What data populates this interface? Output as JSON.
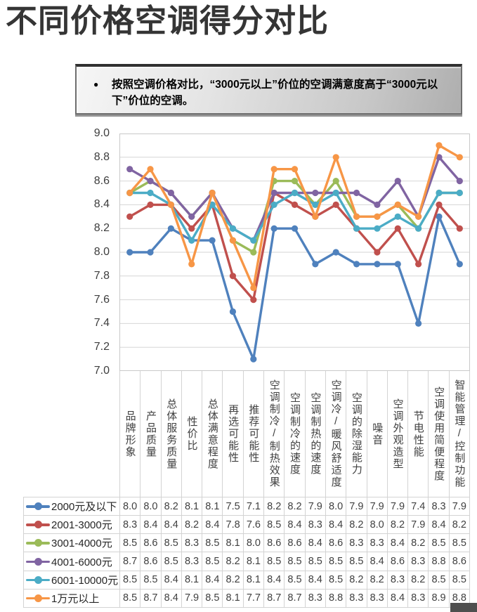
{
  "page": {
    "title": "不同价格空调得分对比"
  },
  "callout": {
    "bullet": "●",
    "text": "按照空调价格对比，“3000元以上”价位的空调满意度高于“3000元以下”价位的空调。"
  },
  "chart_data": {
    "type": "line",
    "title": "不同价格空调得分对比",
    "xlabel": "",
    "ylabel": "",
    "ylim": [
      7.0,
      9.0
    ],
    "ytick_step": 0.2,
    "ytick_labels": [
      "9.0",
      "8.8",
      "8.6",
      "8.4",
      "8.2",
      "8.0",
      "7.8",
      "7.6",
      "7.4",
      "7.2",
      "7.0"
    ],
    "grid": true,
    "legend_position": "table-left",
    "value_format": "one-decimal",
    "categories": [
      "品牌形象",
      "产品质量",
      "总体服务质量",
      "性价比",
      "总体满意程度",
      "再选可能性",
      "推荐可能性",
      "空调制冷/制热效果",
      "空调制冷的速度",
      "空调制热的速度",
      "空调冷/暖风舒适度",
      "空调的除湿能力",
      "噪音",
      "空调外观造型",
      "节电性能",
      "空调使用简便程度",
      "智能管理/控制功能"
    ],
    "series": [
      {
        "name": "2000元及以下",
        "color": "#4F81BD",
        "values": [
          8.0,
          8.0,
          8.2,
          8.1,
          8.1,
          7.5,
          7.1,
          8.2,
          8.2,
          7.9,
          8.0,
          7.9,
          7.9,
          7.9,
          7.4,
          8.3,
          7.9
        ]
      },
      {
        "name": "2001-3000元",
        "color": "#C0504D",
        "values": [
          8.3,
          8.4,
          8.4,
          8.2,
          8.4,
          7.8,
          7.6,
          8.5,
          8.4,
          8.3,
          8.4,
          8.2,
          8.0,
          8.2,
          7.9,
          8.4,
          8.2
        ]
      },
      {
        "name": "3001-4000元",
        "color": "#9BBB59",
        "values": [
          8.5,
          8.6,
          8.5,
          8.3,
          8.5,
          8.1,
          8.0,
          8.6,
          8.6,
          8.4,
          8.6,
          8.3,
          8.3,
          8.4,
          8.2,
          8.5,
          8.5
        ]
      },
      {
        "name": "4001-6000元",
        "color": "#8064A2",
        "values": [
          8.7,
          8.6,
          8.5,
          8.3,
          8.5,
          8.2,
          8.1,
          8.5,
          8.5,
          8.5,
          8.5,
          8.5,
          8.4,
          8.6,
          8.3,
          8.8,
          8.6
        ]
      },
      {
        "name": "6001-10000元",
        "color": "#4BACC6",
        "values": [
          8.5,
          8.5,
          8.4,
          8.1,
          8.4,
          8.2,
          8.1,
          8.4,
          8.5,
          8.4,
          8.5,
          8.2,
          8.2,
          8.3,
          8.2,
          8.5,
          8.5
        ]
      },
      {
        "name": "1万元以上",
        "color": "#F79646",
        "values": [
          8.5,
          8.7,
          8.4,
          7.9,
          8.5,
          8.1,
          7.7,
          8.7,
          8.7,
          8.3,
          8.8,
          8.3,
          8.3,
          8.4,
          8.3,
          8.9,
          8.8
        ]
      }
    ]
  },
  "decor": {
    "corner_bar_color": "#4f4f4f",
    "gridline_color": "#d6d6d6",
    "plot_border_color": "#c9c9c9"
  }
}
